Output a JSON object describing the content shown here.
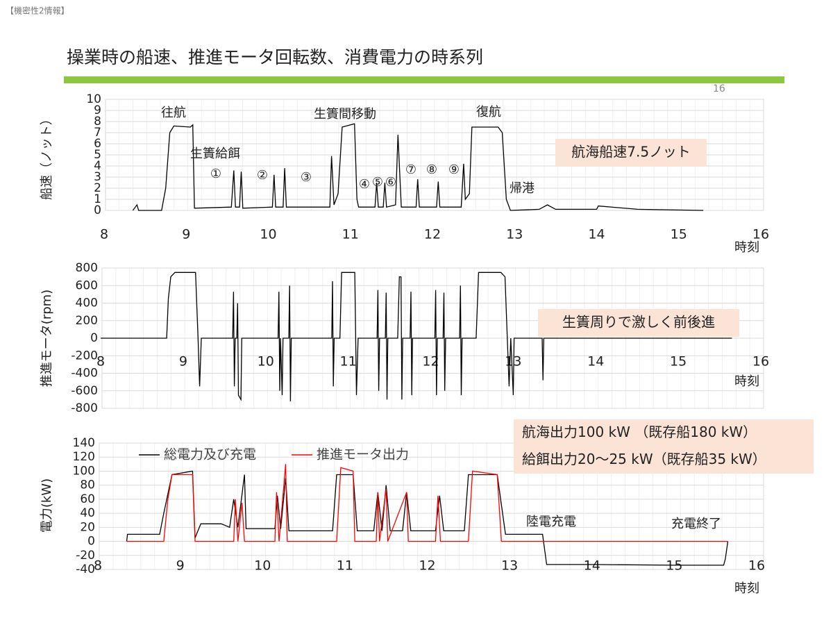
{
  "header": "【機密性2情報】",
  "title": "操業時の船速、推進モータ回転数、消費電力の時系列",
  "page_number": "16",
  "chart_data": [
    {
      "type": "line",
      "ylabel": "船速（ノット）",
      "xlabel": "時刻",
      "xlim": [
        8,
        16
      ],
      "xticks": [
        8,
        9,
        10,
        11,
        12,
        13,
        14,
        15,
        16
      ],
      "ylim": [
        0,
        10
      ],
      "yticks": [
        0,
        1,
        2,
        3,
        4,
        5,
        6,
        7,
        8,
        9,
        10
      ],
      "grid": true,
      "annotations": [
        "往航",
        "生簀給餌",
        "①",
        "②",
        "③",
        "生簀間移動",
        "④",
        "⑤",
        "⑥",
        "⑦",
        "⑧",
        "⑨",
        "復航",
        "帰港"
      ],
      "callout": [
        "航海船速7.5ノット"
      ],
      "series": [
        {
          "color": "#000000",
          "x": [
            8.35,
            8.4,
            8.42,
            8.7,
            8.75,
            8.8,
            8.85,
            9.05,
            9.08,
            9.1,
            9.55,
            9.58,
            9.6,
            9.65,
            9.67,
            9.69,
            10.05,
            10.07,
            10.09,
            10.18,
            10.2,
            10.22,
            10.75,
            10.77,
            10.8,
            10.85,
            10.9,
            11.05,
            11.08,
            11.1,
            11.3,
            11.32,
            11.34,
            11.4,
            11.42,
            11.44,
            11.55,
            11.58,
            11.62,
            11.8,
            11.82,
            11.84,
            12.05,
            12.07,
            12.09,
            12.35,
            12.38,
            12.4,
            12.45,
            12.48,
            12.8,
            12.85,
            12.9,
            12.95,
            13.3,
            13.4,
            13.5,
            14.0,
            14.02,
            14.5,
            15.3
          ],
          "values": [
            0,
            0.5,
            0,
            0,
            2,
            7,
            7.6,
            7.5,
            7.7,
            0.2,
            0.3,
            3.6,
            0.3,
            0.3,
            3.5,
            0.2,
            0.3,
            3.2,
            0.3,
            0.3,
            3.8,
            0.3,
            0.3,
            4.9,
            0.5,
            1.5,
            7.5,
            7.8,
            1,
            0.3,
            0.3,
            2.5,
            0.3,
            0.3,
            2.5,
            0.3,
            0.5,
            6.8,
            0.3,
            0.3,
            2.8,
            0.3,
            0.3,
            2.6,
            0.3,
            0.3,
            4.2,
            1,
            1.5,
            7.5,
            7.5,
            7,
            1,
            0,
            0.1,
            0.5,
            0.1,
            0.1,
            0.4,
            0.1,
            0
          ]
        }
      ]
    },
    {
      "type": "line",
      "ylabel": "推進モータ(rpm)",
      "xlabel": "時刻",
      "xlim": [
        8,
        16
      ],
      "xticks": [
        8,
        9,
        10,
        11,
        12,
        13,
        14,
        15,
        16
      ],
      "ylim": [
        -800,
        800
      ],
      "yticks": [
        -800,
        -600,
        -400,
        -200,
        0,
        200,
        400,
        600,
        800
      ],
      "grid": true,
      "annotations": [],
      "callout": [
        "生簀周りで激しく前後進"
      ],
      "series": [
        {
          "color": "#000000",
          "x": [
            8.0,
            8.8,
            8.82,
            8.85,
            8.9,
            9.15,
            9.18,
            9.2,
            9.22,
            9.6,
            9.61,
            9.62,
            9.63,
            9.65,
            9.66,
            9.67,
            9.7,
            9.71,
            9.72,
            10.15,
            10.16,
            10.17,
            10.18,
            10.2,
            10.21,
            10.22,
            10.28,
            10.29,
            10.3,
            10.31,
            10.8,
            10.81,
            10.82,
            10.83,
            10.9,
            10.92,
            11.08,
            11.1,
            11.12,
            11.35,
            11.36,
            11.37,
            11.38,
            11.45,
            11.46,
            11.47,
            11.48,
            11.6,
            11.62,
            11.64,
            11.65,
            11.66,
            11.75,
            11.76,
            11.77,
            11.78,
            12.05,
            12.06,
            12.07,
            12.08,
            12.15,
            12.16,
            12.17,
            12.18,
            12.35,
            12.36,
            12.37,
            12.38,
            12.55,
            12.58,
            12.85,
            12.9,
            12.95,
            12.97,
            13.0,
            13.01,
            13.02,
            13.35,
            13.36,
            13.37,
            15.65
          ],
          "values": [
            0,
            0,
            450,
            700,
            750,
            750,
            0,
            -550,
            0,
            0,
            530,
            -550,
            0,
            0,
            400,
            -650,
            -700,
            0,
            0,
            0,
            530,
            -600,
            0,
            -650,
            0,
            0,
            0,
            600,
            -720,
            0,
            0,
            650,
            -550,
            0,
            0,
            750,
            750,
            -650,
            0,
            0,
            550,
            -600,
            0,
            0,
            520,
            -700,
            0,
            0,
            700,
            700,
            -700,
            0,
            0,
            530,
            -650,
            0,
            0,
            550,
            -650,
            0,
            0,
            520,
            -600,
            0,
            0,
            600,
            -650,
            0,
            0,
            750,
            750,
            700,
            -550,
            0,
            -650,
            0,
            0,
            0,
            -480,
            0,
            0
          ]
        }
      ]
    },
    {
      "type": "line",
      "ylabel": "電力(kW)",
      "xlabel": "時刻",
      "xlim": [
        8,
        16
      ],
      "xticks": [
        8,
        9,
        10,
        11,
        12,
        13,
        14,
        15,
        16
      ],
      "ylim": [
        -40,
        140
      ],
      "yticks": [
        -40,
        -20,
        0,
        20,
        40,
        60,
        80,
        100,
        120,
        140
      ],
      "grid": true,
      "annotations": [
        "陸電充電",
        "充電終了"
      ],
      "callout": [
        "航海出力100 kW （既存船180 kW）",
        "給餌出力20～25 kW（既存船35 kW）"
      ],
      "series": [
        {
          "name": "総電力及び充電",
          "color": "#000000",
          "x": [
            8.35,
            8.36,
            8.75,
            8.8,
            8.9,
            9.15,
            9.18,
            9.25,
            9.5,
            9.6,
            9.65,
            9.7,
            9.78,
            9.8,
            10.15,
            10.18,
            10.22,
            10.28,
            10.32,
            10.85,
            10.9,
            11.1,
            11.15,
            11.35,
            11.4,
            11.45,
            11.5,
            11.55,
            11.7,
            11.75,
            11.8,
            12.1,
            12.15,
            12.2,
            12.45,
            12.5,
            12.85,
            12.95,
            13.4,
            13.45,
            14.0,
            15.0,
            15.6,
            15.62,
            15.65
          ],
          "values": [
            0,
            10,
            10,
            40,
            95,
            100,
            5,
            25,
            25,
            20,
            60,
            20,
            95,
            18,
            18,
            65,
            18,
            90,
            15,
            15,
            95,
            95,
            15,
            15,
            70,
            15,
            80,
            15,
            15,
            70,
            15,
            15,
            65,
            15,
            15,
            95,
            95,
            10,
            10,
            -33,
            -33,
            -34,
            -34,
            -25,
            0
          ]
        },
        {
          "name": "推進モータ出力",
          "color": "#ff0000",
          "x": [
            8.35,
            8.8,
            8.85,
            8.9,
            9.15,
            9.18,
            9.65,
            9.67,
            9.7,
            9.75,
            9.78,
            10.15,
            10.17,
            10.2,
            10.28,
            10.3,
            10.9,
            10.95,
            11.1,
            11.12,
            11.38,
            11.4,
            11.42,
            11.5,
            11.52,
            11.75,
            11.77,
            12.1,
            12.13,
            12.16,
            12.5,
            12.55,
            12.85,
            12.9,
            15.65
          ],
          "values": [
            0,
            0,
            60,
            95,
            95,
            0,
            0,
            60,
            0,
            55,
            0,
            0,
            70,
            0,
            110,
            0,
            0,
            105,
            100,
            0,
            0,
            70,
            0,
            75,
            0,
            70,
            0,
            0,
            65,
            0,
            0,
            100,
            95,
            0,
            0
          ]
        }
      ]
    }
  ]
}
